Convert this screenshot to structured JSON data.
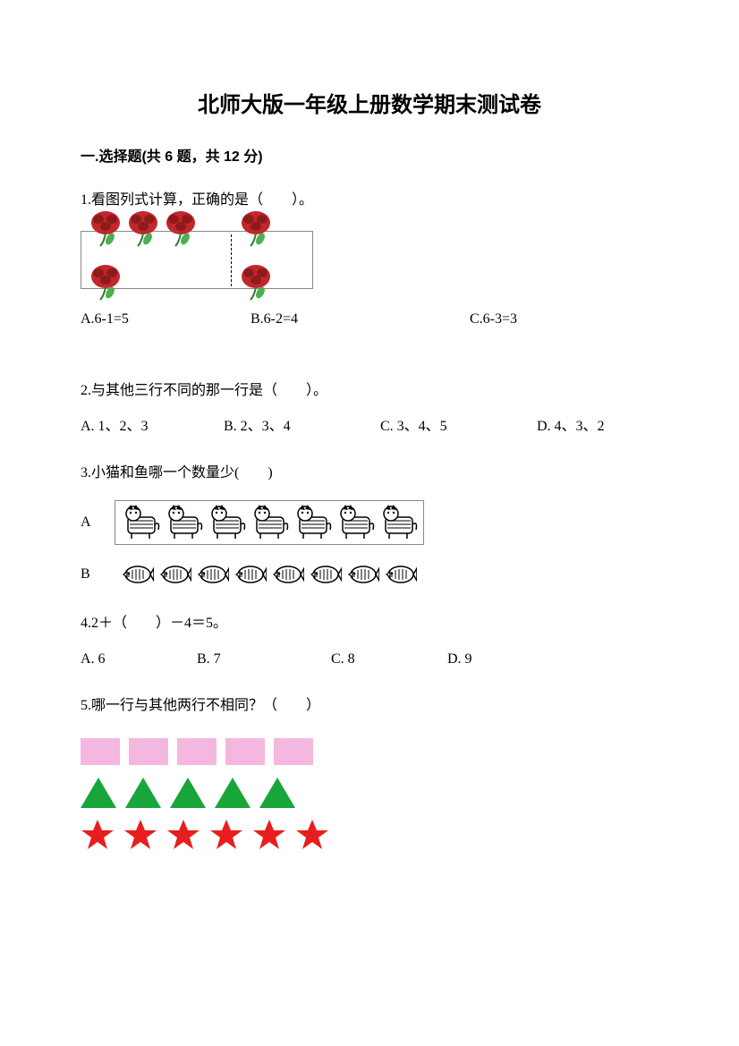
{
  "title": "北师大版一年级上册数学期末测试卷",
  "section1": {
    "header": "一.选择题(共 6 题，共 12 分)",
    "q1": {
      "text": "1.看图列式计算，正确的是（　　）。",
      "flowers": {
        "left_count": 4,
        "right_count": 2,
        "color": "#c1272d",
        "leaf": "#2e7d32"
      },
      "opts": {
        "a": "A.6-1=5",
        "b": "B.6-2=4",
        "c": "C.6-3=3"
      }
    },
    "q2": {
      "text": "2.与其他三行不同的那一行是（　　）。",
      "opts": {
        "a": "A. 1、2、3",
        "b": "B. 2、3、4",
        "c": "C. 3、4、5",
        "d": "D. 4、3、2"
      }
    },
    "q3": {
      "text": "3.小猫和鱼哪一个数量少(　　)",
      "rowA": {
        "label": "A",
        "cat_count": 7
      },
      "rowB": {
        "label": "B",
        "fish_count": 8
      }
    },
    "q4": {
      "text": "4.2＋（　　）－4＝5。",
      "opts": {
        "a": "A. 6",
        "b": "B. 7",
        "c": "C. 8",
        "d": "D. 9"
      }
    },
    "q5": {
      "text": "5.哪一行与其他两行不相同？（　　）",
      "shapes": {
        "row1": {
          "type": "rect",
          "count": 5,
          "color": "#f4b7e0"
        },
        "row2": {
          "type": "triangle",
          "count": 5,
          "color": "#18a53a"
        },
        "row3": {
          "type": "star",
          "count": 6,
          "color": "#e81e1e"
        }
      }
    }
  }
}
